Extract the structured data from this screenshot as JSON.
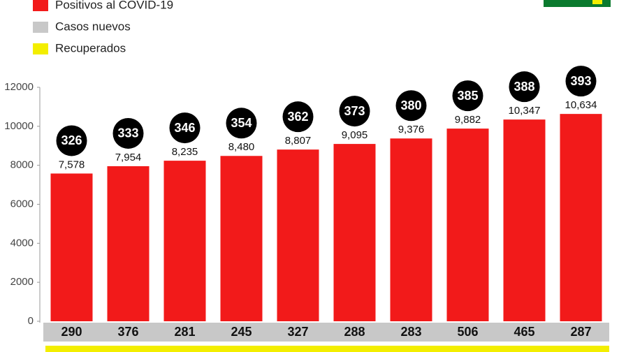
{
  "chart_data": {
    "type": "bar",
    "series": [
      {
        "name": "Positivos al COVID-19",
        "color": "#f21a1a",
        "values": [
          7578,
          7954,
          8235,
          8480,
          8807,
          9095,
          9376,
          9882,
          10347,
          10634
        ],
        "value_labels": [
          "7,578",
          "7,954",
          "8,235",
          "8,480",
          "8,807",
          "9,095",
          "9,376",
          "9,882",
          "10,347",
          "10,634"
        ]
      },
      {
        "name": "Casos nuevos",
        "color": "#c8c8c8",
        "values": [
          290,
          376,
          281,
          245,
          327,
          288,
          283,
          506,
          465,
          287
        ]
      },
      {
        "name": "Recuperados",
        "color": "#f3ee00",
        "values": [
          null,
          null,
          null,
          null,
          null,
          null,
          null,
          null,
          null,
          null
        ]
      }
    ],
    "badges": [
      326,
      333,
      346,
      354,
      362,
      373,
      380,
      385,
      388,
      393
    ],
    "ylim": [
      0,
      12000
    ],
    "yticks": [
      0,
      2000,
      4000,
      6000,
      8000,
      10000,
      12000
    ]
  }
}
